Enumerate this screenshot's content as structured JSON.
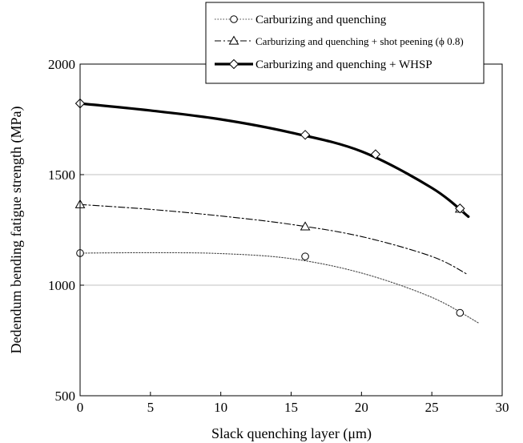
{
  "chart_data": {
    "type": "line",
    "xlabel": "Slack quenching layer (μm)",
    "ylabel": "Dedendum bending fatigue strength (MPa)",
    "xlim": [
      0,
      30
    ],
    "ylim": [
      500,
      2000
    ],
    "xticks": [
      0,
      5,
      10,
      15,
      20,
      25,
      30
    ],
    "yticks": [
      500,
      1000,
      1500,
      2000
    ],
    "grid": "horizontal",
    "legend_position": "top-right",
    "series": [
      {
        "name": "Carburizing and quenching",
        "marker": "circle",
        "line_style": "dotted",
        "points": [
          [
            0,
            1145
          ],
          [
            16,
            1130
          ],
          [
            27,
            875
          ]
        ],
        "curve": [
          [
            0,
            1145
          ],
          [
            5,
            1147
          ],
          [
            10,
            1143
          ],
          [
            15,
            1120
          ],
          [
            20,
            1055
          ],
          [
            25,
            945
          ],
          [
            28.3,
            830
          ]
        ]
      },
      {
        "name": "Carburizing and quenching + shot peening (ϕ 0.8)",
        "marker": "triangle",
        "line_style": "dash-dot",
        "points": [
          [
            0,
            1365
          ],
          [
            16,
            1265
          ],
          [
            27,
            1345
          ]
        ],
        "curve": [
          [
            0,
            1365
          ],
          [
            5,
            1343
          ],
          [
            10,
            1313
          ],
          [
            15,
            1275
          ],
          [
            20,
            1220
          ],
          [
            25,
            1130
          ],
          [
            27.5,
            1050
          ]
        ]
      },
      {
        "name": "Carburizing and quenching + WHSP",
        "marker": "diamond",
        "line_style": "solid-thick",
        "points": [
          [
            0,
            1822
          ],
          [
            16,
            1680
          ],
          [
            21,
            1592
          ],
          [
            27,
            1347
          ]
        ],
        "curve": [
          [
            0,
            1822
          ],
          [
            5,
            1790
          ],
          [
            10,
            1750
          ],
          [
            15,
            1690
          ],
          [
            20,
            1605
          ],
          [
            25,
            1440
          ],
          [
            27.6,
            1310
          ]
        ]
      }
    ]
  }
}
